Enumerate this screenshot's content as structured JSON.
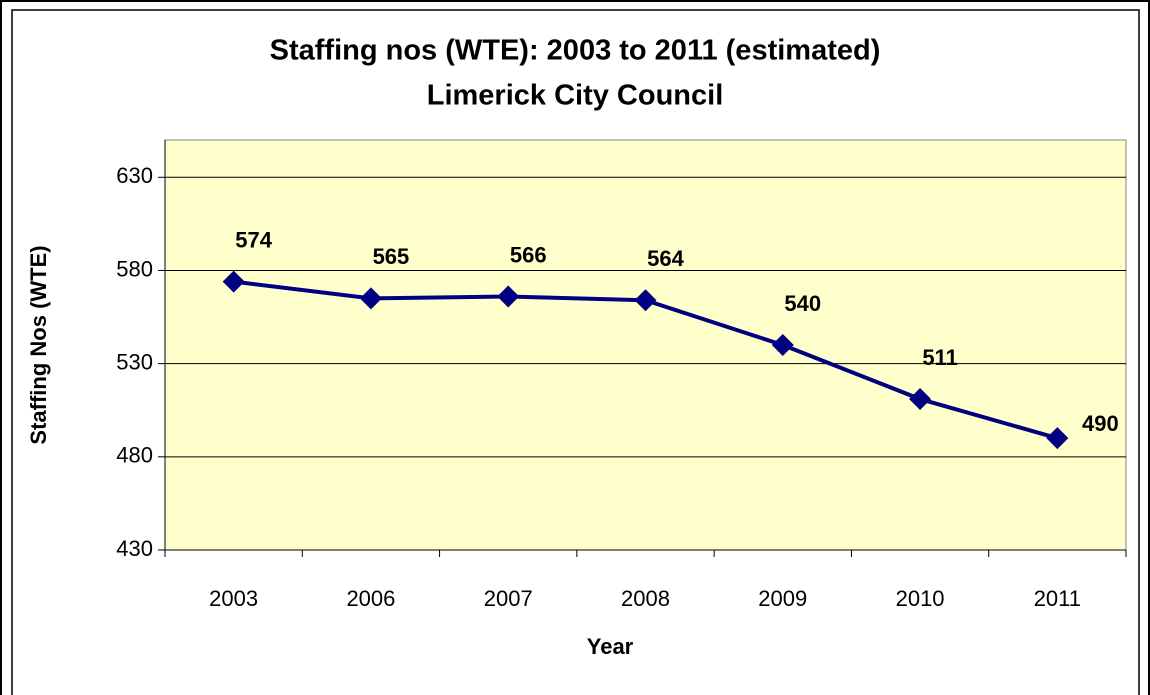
{
  "chart_data": {
    "type": "line",
    "title": "Staffing nos (WTE): 2003 to 2011 (estimated)",
    "subtitle": "Limerick City Council",
    "x_label": "Year",
    "y_label": "Staffing Nos (WTE)",
    "categories": [
      "2003",
      "2006",
      "2007",
      "2008",
      "2009",
      "2010",
      "2011"
    ],
    "series": [
      {
        "name": "Staffing nos",
        "color": "#000080",
        "values": [
          574,
          565,
          566,
          564,
          540,
          511,
          490
        ]
      }
    ],
    "ylim": [
      430,
      650
    ],
    "yticks": [
      430,
      480,
      530,
      580,
      630
    ],
    "grid": true,
    "plot_background": "#ffffcc"
  }
}
